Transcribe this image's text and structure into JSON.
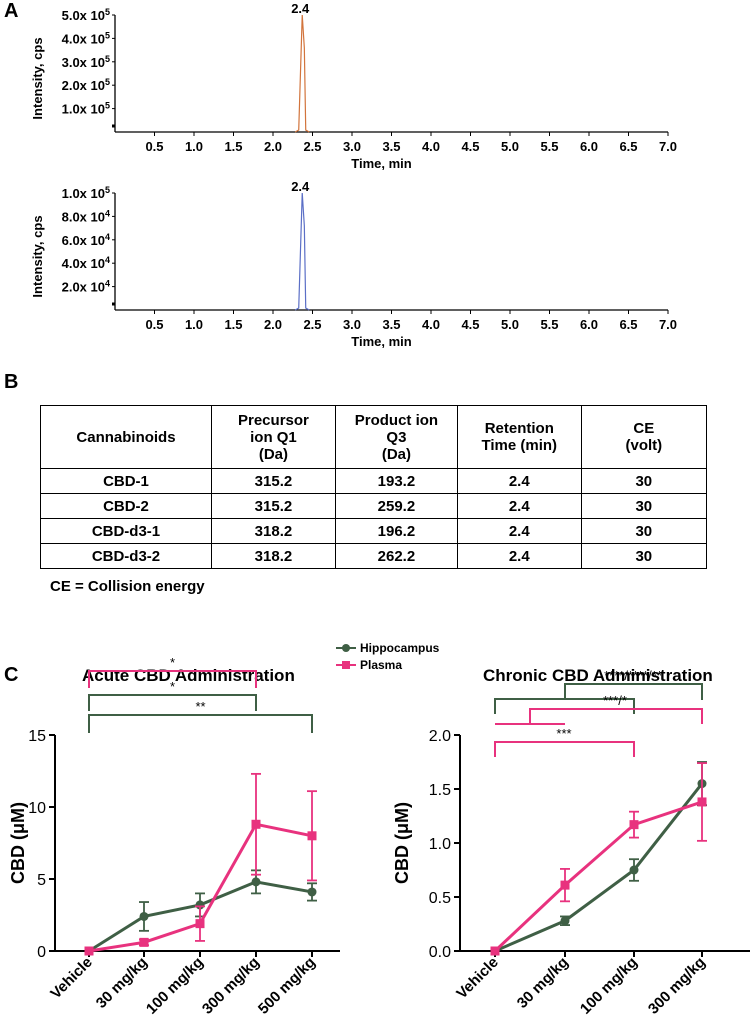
{
  "panels": {
    "a": "A",
    "b": "B",
    "c": "C"
  },
  "chromatograms": [
    {
      "peak_label": "2.4",
      "ylabel": "Intensity, cps",
      "xlabel": "Time, min",
      "color": "#d2743c",
      "yticks": [
        {
          "v": 100000,
          "html": "1.0x 10<tspan dy='-5' font-size='9'>5</tspan>"
        },
        {
          "v": 200000,
          "html": "2.0x 10<tspan dy='-5' font-size='9'>5</tspan>"
        },
        {
          "v": 300000,
          "html": "3.0x 10<tspan dy='-5' font-size='9'>5</tspan>"
        },
        {
          "v": 400000,
          "html": "4.0x 10<tspan dy='-5' font-size='9'>5</tspan>"
        },
        {
          "v": 500000,
          "html": "5.0x 10<tspan dy='-5' font-size='9'>5</tspan>"
        }
      ],
      "ymax": 500000,
      "peak_height": 500000,
      "xticks": [
        "0.5",
        "1.0",
        "1.5",
        "2.0",
        "2.5",
        "3.0",
        "3.5",
        "4.0",
        "4.5",
        "5.0",
        "5.5",
        "6.0",
        "6.5",
        "7.0"
      ]
    },
    {
      "peak_label": "2.4",
      "ylabel": "Intensity, cps",
      "xlabel": "Time, min",
      "color": "#5b6fc6",
      "yticks": [
        {
          "v": 20000,
          "html": "2.0x 10<tspan dy='-5' font-size='9'>4</tspan>"
        },
        {
          "v": 40000,
          "html": "4.0x 10<tspan dy='-5' font-size='9'>4</tspan>"
        },
        {
          "v": 60000,
          "html": "6.0x 10<tspan dy='-5' font-size='9'>4</tspan>"
        },
        {
          "v": 80000,
          "html": "8.0x 10<tspan dy='-5' font-size='9'>4</tspan>"
        },
        {
          "v": 100000,
          "html": "1.0x 10<tspan dy='-5' font-size='9'>5</tspan>"
        }
      ],
      "ymax": 100000,
      "peak_height": 100000,
      "xticks": [
        "0.5",
        "1.0",
        "1.5",
        "2.0",
        "2.5",
        "3.0",
        "3.5",
        "4.0",
        "4.5",
        "5.0",
        "5.5",
        "6.0",
        "6.5",
        "7.0"
      ]
    }
  ],
  "table": {
    "headers": [
      [
        "Cannabinoids"
      ],
      [
        "Precursor",
        "ion Q1",
        "(Da)"
      ],
      [
        "Product ion",
        "Q3",
        "(Da)"
      ],
      [
        "Retention",
        "Time (min)"
      ],
      [
        "CE",
        "(volt)"
      ]
    ],
    "rows": [
      [
        "CBD-1",
        "315.2",
        "193.2",
        "2.4",
        "30"
      ],
      [
        "CBD-2",
        "315.2",
        "259.2",
        "2.4",
        "30"
      ],
      [
        "CBD-d3-1",
        "318.2",
        "196.2",
        "2.4",
        "30"
      ],
      [
        "CBD-d3-2",
        "318.2",
        "262.2",
        "2.4",
        "30"
      ]
    ],
    "footnote": "CE = Collision energy"
  },
  "legend": {
    "hippocampus": "Hippocampus",
    "plasma": "Plasma",
    "hippocampus_color": "#3f5f45",
    "plasma_color": "#e8327e"
  },
  "chart_data": [
    {
      "type": "line",
      "title": "Acute CBD Administration",
      "ylabel": "CBD (μM)",
      "categories": [
        "Vehicle",
        "30 mg/kg",
        "100 mg/kg",
        "300 mg/kg",
        "500 mg/kg"
      ],
      "ylim": [
        0,
        15
      ],
      "yticks": [
        "0",
        "5",
        "10",
        "15"
      ],
      "ytick_values": [
        0,
        5,
        10,
        15
      ],
      "series": [
        {
          "name": "Hippocampus",
          "color": "#3f5f45",
          "values": [
            0,
            2.4,
            3.2,
            4.8,
            4.1
          ],
          "errors": [
            0,
            1.0,
            0.8,
            0.8,
            0.6
          ]
        },
        {
          "name": "Plasma",
          "color": "#e8327e",
          "values": [
            0,
            0.6,
            1.9,
            8.8,
            8.0
          ],
          "errors": [
            0,
            0.2,
            1.2,
            3.5,
            3.1
          ]
        }
      ],
      "brackets": [
        {
          "from": 0,
          "to": 4,
          "level": 2,
          "label": "**",
          "color": "#3f5f45"
        },
        {
          "from": 0,
          "to": 3,
          "level": 1,
          "label": "*",
          "color": "#3f5f45"
        },
        {
          "from": 0,
          "to": 3,
          "level": 0,
          "label": "*",
          "color": "#e8327e"
        }
      ]
    },
    {
      "type": "line",
      "title": "Chronic CBD Administration",
      "ylabel": "CBD (μM)",
      "categories": [
        "Vehicle",
        "30 mg/kg",
        "100 mg/kg",
        "300 mg/kg"
      ],
      "ylim": [
        0,
        2.0
      ],
      "yticks": [
        "0.0",
        "0.5",
        "1.0",
        "1.5",
        "2.0"
      ],
      "ytick_values": [
        0,
        0.5,
        1.0,
        1.5,
        2.0
      ],
      "series": [
        {
          "name": "Hippocampus",
          "color": "#3f5f45",
          "values": [
            0,
            0.28,
            0.75,
            1.55
          ],
          "errors": [
            0,
            0.04,
            0.1,
            0.2
          ]
        },
        {
          "name": "Plasma",
          "color": "#e8327e",
          "values": [
            0,
            0.61,
            1.17,
            1.38
          ],
          "errors": [
            0,
            0.15,
            0.12,
            0.36
          ]
        }
      ],
      "brackets": [
        {
          "label": "****/****/**",
          "color": "#3f5f45",
          "kind": "nested-top"
        },
        {
          "label": "***/*",
          "color": "#e8327e",
          "kind": "nested-mid"
        },
        {
          "from": 0,
          "to": 2,
          "label": "***",
          "color": "#e8327e",
          "kind": "simple"
        }
      ]
    }
  ]
}
